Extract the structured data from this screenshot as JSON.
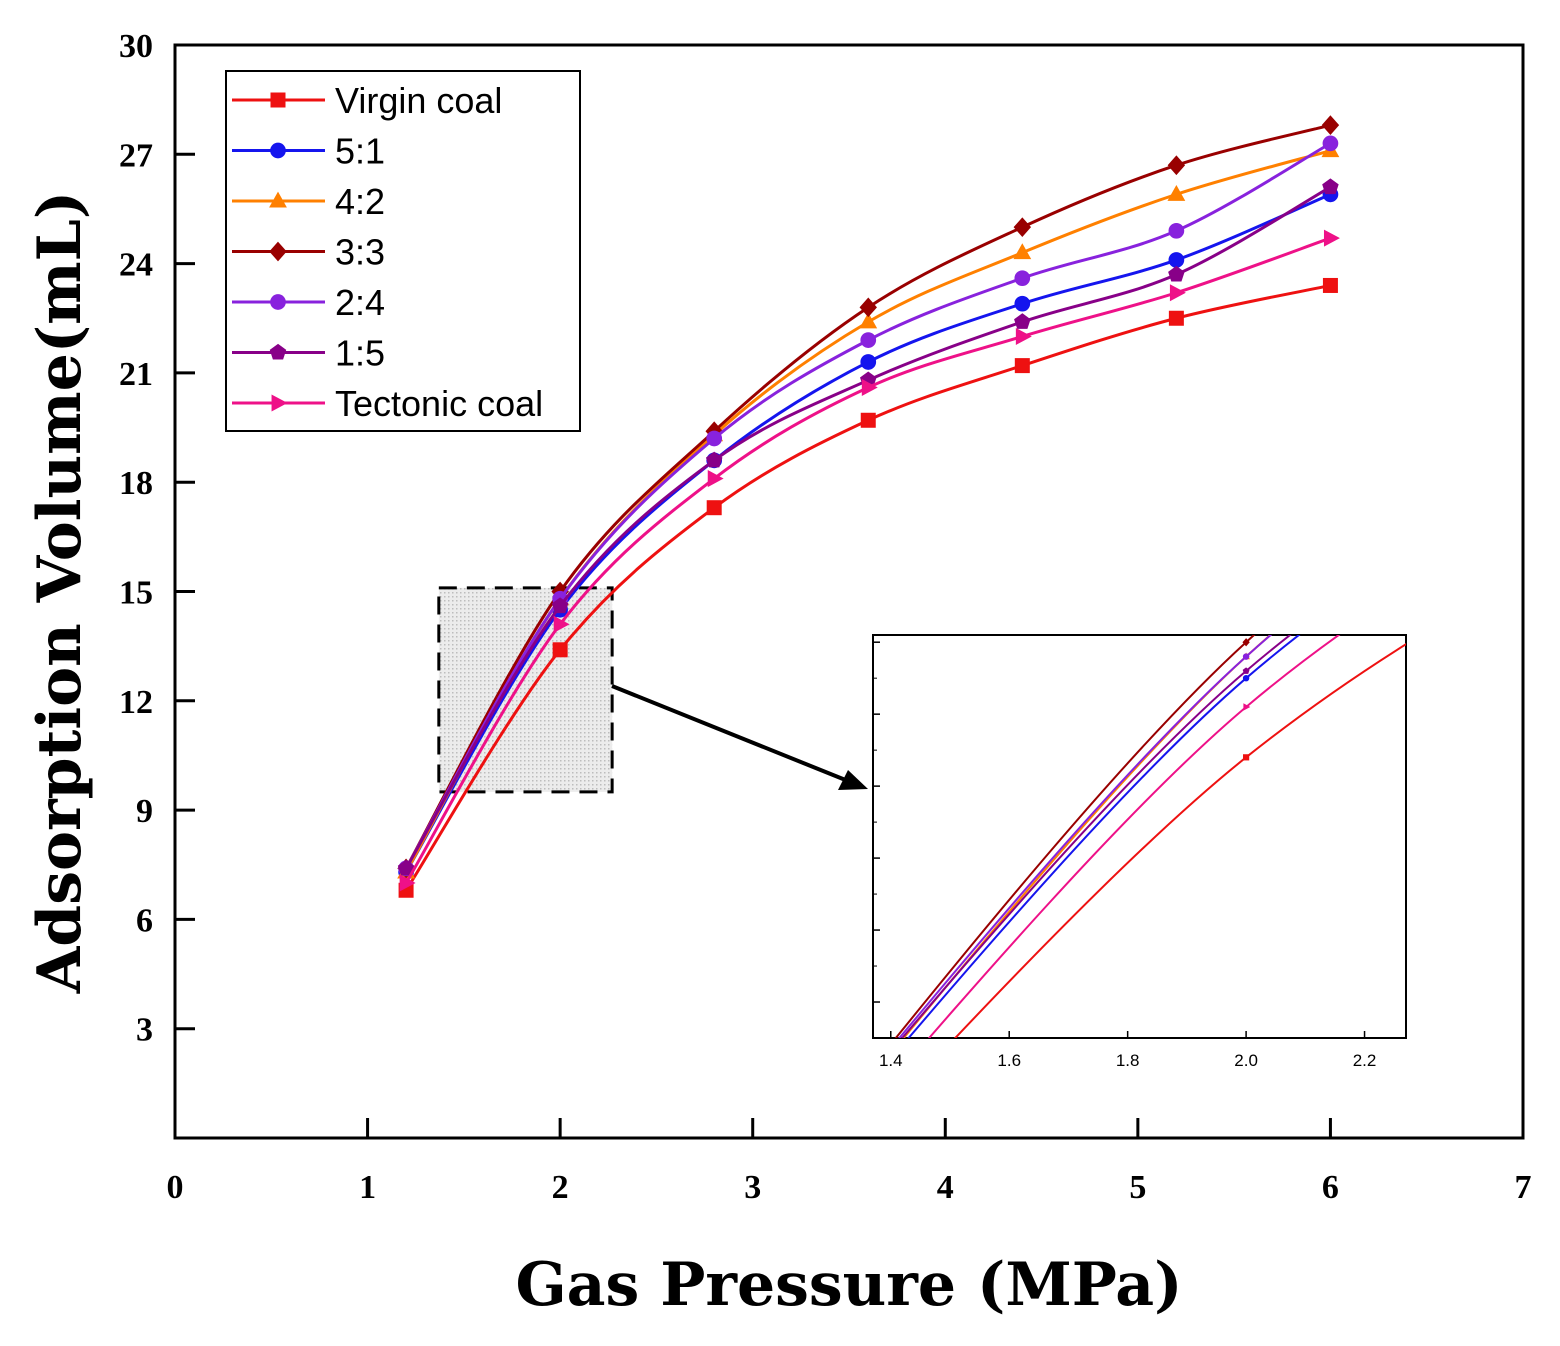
{
  "chart_data": {
    "type": "line",
    "xlabel": "Gas Pressure (MPa)",
    "ylabel": "Adsorption Volume(mL)",
    "xlim": [
      0,
      7
    ],
    "ylim": [
      0,
      30
    ],
    "xticks": [
      "0",
      "1",
      "2",
      "3",
      "4",
      "5",
      "6",
      "7"
    ],
    "yticks": [
      "3",
      "6",
      "9",
      "12",
      "15",
      "18",
      "21",
      "24",
      "27",
      "30"
    ],
    "x": [
      1.2,
      2.0,
      2.8,
      3.6,
      4.4,
      5.2,
      6.0
    ],
    "series": [
      {
        "name": "Virgin coal",
        "color": "#ee1111",
        "marker": "square",
        "values": [
          6.8,
          13.4,
          17.3,
          19.7,
          21.2,
          22.5,
          23.4
        ]
      },
      {
        "name": "5:1",
        "color": "#1515ee",
        "marker": "circle",
        "values": [
          7.3,
          14.5,
          18.6,
          21.3,
          22.9,
          24.1,
          25.9
        ]
      },
      {
        "name": "4:2",
        "color": "#ff8000",
        "marker": "triangle-up",
        "values": [
          7.3,
          14.8,
          19.3,
          22.4,
          24.3,
          25.9,
          27.1
        ]
      },
      {
        "name": "3:3",
        "color": "#990000",
        "marker": "diamond",
        "values": [
          7.4,
          15.0,
          19.4,
          22.8,
          25.0,
          26.7,
          27.8
        ]
      },
      {
        "name": "2:4",
        "color": "#8822dd",
        "marker": "circle",
        "values": [
          7.4,
          14.8,
          19.2,
          21.9,
          23.6,
          24.9,
          27.3
        ]
      },
      {
        "name": "1:5",
        "color": "#880088",
        "marker": "pentagon",
        "values": [
          7.4,
          14.6,
          18.6,
          20.8,
          22.4,
          23.7,
          26.1
        ]
      },
      {
        "name": "Tectonic coal",
        "color": "#ee1188",
        "marker": "triangle-right",
        "values": [
          7.0,
          14.1,
          18.1,
          20.6,
          22.0,
          23.2,
          24.7
        ]
      }
    ],
    "legend_position": "top-left",
    "inset": {
      "xlim": [
        1.37,
        2.27
      ],
      "ylim": [
        9.5,
        15.1
      ],
      "xticks": [
        "1.4",
        "1.6",
        "1.8",
        "2.0",
        "2.2"
      ],
      "zoom_region": {
        "x": [
          1.37,
          2.27
        ],
        "y": [
          9.5,
          15.1
        ]
      }
    }
  }
}
